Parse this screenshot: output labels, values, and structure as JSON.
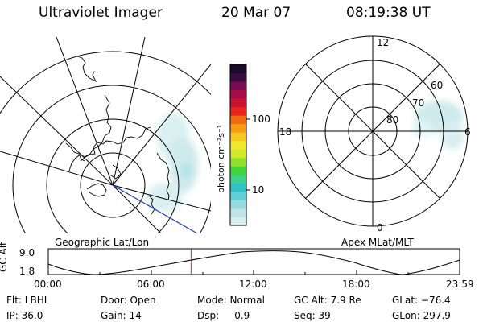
{
  "header": {
    "instrument": "Ultraviolet Imager",
    "date": "20 Mar 07",
    "time": "08:19:38 UT"
  },
  "left_map": {
    "caption": "Geographic Lat/Lon"
  },
  "right_map": {
    "caption": "Apex MLat/MLT",
    "mlt_labels": {
      "top": "12",
      "bottom": "0",
      "left": "18",
      "right": "6"
    },
    "lat_labels": [
      "60",
      "70",
      "80"
    ]
  },
  "colorbar": {
    "unit_label": "photon cm⁻²s⁻¹",
    "ticks": [
      "100",
      "10"
    ],
    "colors": [
      "#d9eef0",
      "#bfe4e8",
      "#97dbe0",
      "#5fd0d7",
      "#2ec2c6",
      "#3fd08a",
      "#42d23a",
      "#8ee02a",
      "#d4e82a",
      "#f0e82a",
      "#f4c81e",
      "#f79a14",
      "#f06a12",
      "#e8241c",
      "#cc1030",
      "#a80c48",
      "#7a0a50",
      "#3c0a3c",
      "#1a0a2a"
    ]
  },
  "altitude_panel": {
    "ylabel": "GC Alt",
    "y_ticks": [
      "9.0",
      "1.8"
    ],
    "x_ticks": [
      "00:00",
      "06:00",
      "12:00",
      "18:00",
      "23:59"
    ],
    "current_time_hours": 8.33
  },
  "status": {
    "row1": [
      "Flt: LBHL",
      "Door: Open",
      "Mode: Normal",
      "GC Alt: 7.9 Re",
      "GLat: −76.4"
    ],
    "row2": [
      "IP: 36.0",
      "Gain: 14",
      "Dsp:     0.9",
      "Seq: 39",
      "GLon: 297.9"
    ]
  },
  "colors": {
    "orbit_line": "#1f3fbf",
    "time_marker": "#cc2a1a",
    "aurora_haze": "#cfeaec"
  }
}
